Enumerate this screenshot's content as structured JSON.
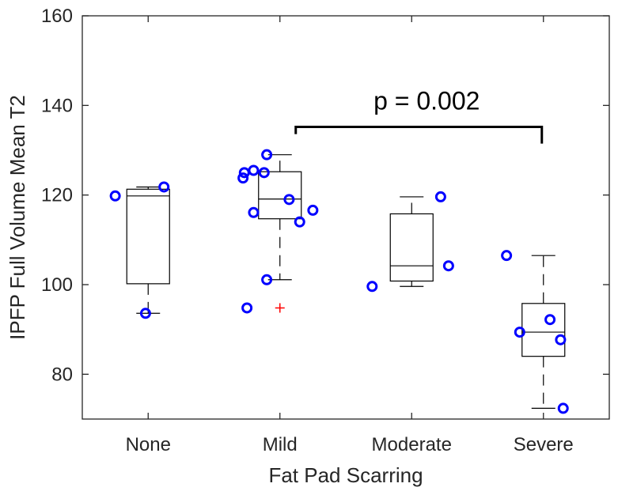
{
  "chart_data": {
    "type": "box",
    "xlabel": "Fat Pad Scarring",
    "ylabel": "IPFP Full Volume Mean T2",
    "ylim": [
      70,
      160
    ],
    "yticks": [
      80,
      100,
      120,
      140,
      160
    ],
    "categories": [
      "None",
      "Mild",
      "Moderate",
      "Severe"
    ],
    "boxes": [
      {
        "q1": 100.2,
        "median": 119.8,
        "q3": 121.3,
        "whisker_low": 93.6,
        "whisker_high": 121.8,
        "outliers": []
      },
      {
        "q1": 114.7,
        "median": 119.1,
        "q3": 125.2,
        "whisker_low": 101.1,
        "whisker_high": 129.0,
        "outliers": [
          94.8
        ]
      },
      {
        "q1": 100.8,
        "median": 104.2,
        "q3": 115.8,
        "whisker_low": 99.6,
        "whisker_high": 119.6,
        "outliers": []
      },
      {
        "q1": 84.0,
        "median": 89.4,
        "q3": 95.8,
        "whisker_low": 72.4,
        "whisker_high": 106.5,
        "outliers": []
      }
    ],
    "points": [
      {
        "group": 1,
        "offset": -0.25,
        "y": 119.8
      },
      {
        "group": 1,
        "offset": 0.12,
        "y": 121.8
      },
      {
        "group": 1,
        "offset": -0.02,
        "y": 93.6
      },
      {
        "group": 2,
        "offset": -0.1,
        "y": 129.0
      },
      {
        "group": 2,
        "offset": -0.27,
        "y": 125.0
      },
      {
        "group": 2,
        "offset": -0.2,
        "y": 125.5
      },
      {
        "group": 2,
        "offset": -0.28,
        "y": 123.8
      },
      {
        "group": 2,
        "offset": 0.25,
        "y": 116.6
      },
      {
        "group": 2,
        "offset": -0.2,
        "y": 116.1
      },
      {
        "group": 2,
        "offset": 0.07,
        "y": 119.0
      },
      {
        "group": 2,
        "offset": -0.12,
        "y": 125.0
      },
      {
        "group": 2,
        "offset": 0.15,
        "y": 114.0
      },
      {
        "group": 2,
        "offset": -0.1,
        "y": 101.1
      },
      {
        "group": 2,
        "offset": -0.25,
        "y": 94.8
      },
      {
        "group": 3,
        "offset": 0.22,
        "y": 119.6
      },
      {
        "group": 3,
        "offset": -0.3,
        "y": 99.6
      },
      {
        "group": 3,
        "offset": 0.28,
        "y": 104.2
      },
      {
        "group": 4,
        "offset": -0.28,
        "y": 106.5
      },
      {
        "group": 4,
        "offset": -0.18,
        "y": 89.4
      },
      {
        "group": 4,
        "offset": 0.05,
        "y": 92.2
      },
      {
        "group": 4,
        "offset": 0.13,
        "y": 87.7
      },
      {
        "group": 4,
        "offset": 0.15,
        "y": 72.4
      }
    ],
    "annotation": {
      "text": "p = 0.002",
      "from_group": 2,
      "to_group": 4,
      "bracket_y": 135.2,
      "tick_bottom_y": 133.6
    },
    "colors": {
      "points": "#0000ff",
      "outlier": "#ff0000",
      "box": "#000000",
      "axis": "#262626"
    },
    "grid": false
  }
}
